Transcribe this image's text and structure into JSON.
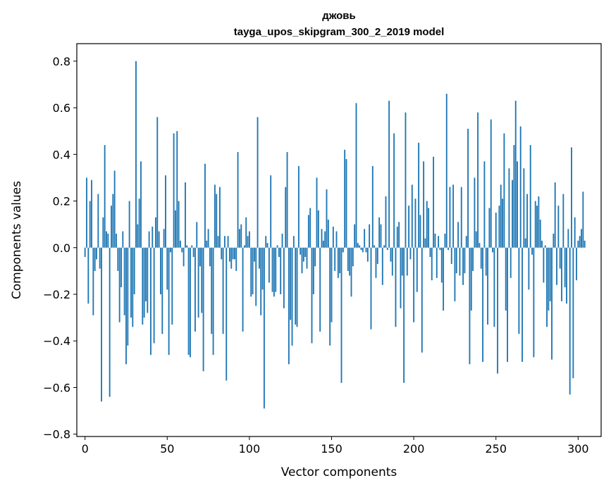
{
  "chart_data": {
    "type": "bar",
    "title": "джовь",
    "subtitle": "tayga_upos_skipgram_300_2_2019 model",
    "xlabel": "Vector components",
    "ylabel": "Components values",
    "xlim": [
      -5,
      314
    ],
    "ylim": [
      -0.81,
      0.875
    ],
    "x_ticks": [
      0,
      50,
      100,
      150,
      200,
      250,
      300
    ],
    "y_ticks": [
      -0.8,
      -0.6,
      -0.4,
      -0.2,
      0.0,
      0.2,
      0.4,
      0.6,
      0.8
    ],
    "x_tick_labels": [
      "0",
      "50",
      "100",
      "150",
      "200",
      "250",
      "300"
    ],
    "y_tick_labels": [
      "−0.8",
      "−0.6",
      "−0.4",
      "−0.2",
      "0.0",
      "0.2",
      "0.4",
      "0.6",
      "0.8"
    ],
    "bar_color": "#1f77b4",
    "grid": false,
    "values": [
      -0.04,
      0.3,
      -0.24,
      0.2,
      0.29,
      -0.29,
      -0.1,
      -0.05,
      0.23,
      -0.09,
      -0.66,
      0.13,
      0.44,
      0.07,
      0.06,
      -0.64,
      0.18,
      0.23,
      0.33,
      0.06,
      -0.1,
      -0.32,
      -0.17,
      0.07,
      -0.29,
      -0.5,
      -0.42,
      0.2,
      -0.3,
      -0.34,
      -0.2,
      0.8,
      0.1,
      0.21,
      0.37,
      -0.33,
      -0.3,
      -0.23,
      -0.28,
      0.07,
      -0.46,
      0.09,
      -0.41,
      0.13,
      0.56,
      0.07,
      -0.2,
      -0.37,
      0.08,
      0.31,
      -0.18,
      -0.46,
      -0.02,
      -0.33,
      0.49,
      0.16,
      0.5,
      0.2,
      0.03,
      -0.02,
      -0.08,
      0.28,
      0.01,
      -0.46,
      -0.47,
      0.01,
      -0.04,
      -0.36,
      0.11,
      -0.3,
      -0.08,
      -0.28,
      -0.53,
      0.36,
      0.03,
      0.08,
      -0.08,
      -0.37,
      -0.46,
      0.27,
      0.23,
      0.05,
      0.26,
      -0.05,
      -0.37,
      0.05,
      -0.57,
      0.05,
      -0.06,
      -0.09,
      -0.05,
      -0.05,
      -0.1,
      0.41,
      0.08,
      0.1,
      -0.36,
      0.01,
      0.13,
      0.05,
      0.07,
      -0.21,
      -0.2,
      -0.06,
      -0.25,
      0.56,
      -0.09,
      -0.29,
      -0.18,
      -0.69,
      0.05,
      0.02,
      -0.15,
      0.31,
      -0.19,
      -0.21,
      -0.19,
      0.01,
      -0.04,
      -0.2,
      0.06,
      -0.26,
      0.26,
      0.41,
      -0.5,
      -0.31,
      -0.42,
      0.05,
      -0.33,
      -0.34,
      0.35,
      -0.03,
      -0.11,
      -0.06,
      -0.04,
      -0.09,
      0.14,
      0.17,
      -0.41,
      -0.2,
      -0.08,
      0.3,
      0.16,
      -0.36,
      0.08,
      0.03,
      0.07,
      0.25,
      0.12,
      -0.42,
      -0.32,
      0.09,
      -0.1,
      0.07,
      -0.13,
      -0.11,
      -0.58,
      -0.02,
      0.42,
      0.38,
      -0.1,
      -0.12,
      -0.21,
      -0.08,
      0.1,
      0.62,
      0.02,
      0.01,
      -0.01,
      -0.02,
      0.08,
      -0.02,
      -0.06,
      0.1,
      -0.35,
      0.35,
      0.01,
      -0.13,
      -0.07,
      0.13,
      0.1,
      -0.16,
      0.01,
      0.22,
      -0.01,
      0.63,
      -0.06,
      -0.12,
      0.49,
      -0.34,
      0.09,
      0.11,
      -0.26,
      -0.12,
      -0.58,
      0.58,
      -0.12,
      0.18,
      -0.05,
      0.27,
      -0.32,
      0.21,
      -0.19,
      0.45,
      0.14,
      -0.45,
      0.37,
      0.04,
      0.2,
      0.17,
      -0.04,
      -0.14,
      0.39,
      0.06,
      -0.13,
      0.05,
      -0.01,
      -0.15,
      -0.27,
      0.06,
      0.66,
      -0.01,
      0.26,
      -0.07,
      0.27,
      -0.23,
      -0.11,
      0.11,
      -0.12,
      0.26,
      -0.16,
      -0.11,
      0.05,
      0.51,
      -0.5,
      -0.27,
      -0.1,
      0.3,
      0.07,
      0.58,
      0.02,
      -0.09,
      -0.49,
      0.37,
      -0.12,
      -0.33,
      0.17,
      0.55,
      -0.02,
      -0.34,
      0.15,
      -0.54,
      0.18,
      0.27,
      0.21,
      0.49,
      -0.27,
      -0.49,
      0.34,
      -0.13,
      0.29,
      0.44,
      0.63,
      0.37,
      -0.37,
      0.52,
      -0.49,
      0.34,
      0.04,
      0.23,
      -0.18,
      0.44,
      -0.03,
      -0.47,
      0.2,
      0.18,
      0.22,
      0.12,
      0.03,
      -0.15,
      0.01,
      -0.34,
      -0.27,
      -0.23,
      -0.48,
      0.06,
      0.28,
      -0.16,
      0.18,
      -0.09,
      -0.23,
      0.23,
      -0.17,
      -0.24,
      0.08,
      -0.63,
      0.43,
      -0.56,
      0.13,
      -0.14,
      0.03,
      0.05,
      0.08,
      0.24,
      0.03
    ]
  }
}
